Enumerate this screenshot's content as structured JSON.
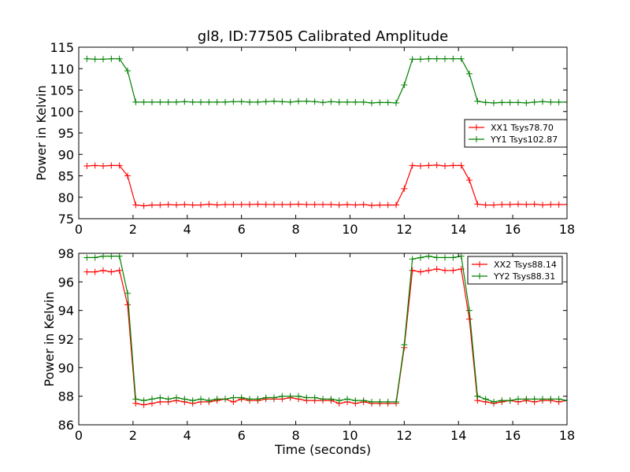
{
  "title": "gl8, ID:77505 Calibrated Amplitude",
  "chart_data": [
    {
      "type": "line",
      "title": "gl8, ID:77505 Calibrated Amplitude",
      "xlabel": "",
      "ylabel": "Power in Kelvin",
      "xlim": [
        0,
        18
      ],
      "ylim": [
        75,
        115
      ],
      "xticks": [
        0,
        2,
        4,
        6,
        8,
        10,
        12,
        14,
        16,
        18
      ],
      "yticks": [
        75,
        80,
        85,
        90,
        95,
        100,
        105,
        110,
        115
      ],
      "grid": false,
      "legend": "center-right",
      "series": [
        {
          "name": "XX1 Tsys78.70",
          "color": "#ff0000",
          "marker": "+",
          "x": [
            0.3,
            0.6,
            0.9,
            1.2,
            1.5,
            1.8,
            2.1,
            2.4,
            2.7,
            3.0,
            3.3,
            3.6,
            3.9,
            4.2,
            4.5,
            4.8,
            5.1,
            5.4,
            5.7,
            6.0,
            6.3,
            6.6,
            6.9,
            7.2,
            7.5,
            7.8,
            8.1,
            8.4,
            8.7,
            9.0,
            9.3,
            9.6,
            9.9,
            10.2,
            10.5,
            10.8,
            11.1,
            11.4,
            11.7,
            12.0,
            12.3,
            12.6,
            12.9,
            13.2,
            13.5,
            13.8,
            14.1,
            14.4,
            14.7,
            15.0,
            15.3,
            15.6,
            15.9,
            16.2,
            16.5,
            16.8,
            17.1,
            17.4,
            17.7,
            18.0
          ],
          "y": [
            87.3,
            87.4,
            87.3,
            87.4,
            87.4,
            85.0,
            78.2,
            78.0,
            78.2,
            78.2,
            78.3,
            78.2,
            78.3,
            78.2,
            78.2,
            78.4,
            78.2,
            78.3,
            78.3,
            78.3,
            78.3,
            78.4,
            78.3,
            78.3,
            78.3,
            78.3,
            78.4,
            78.3,
            78.3,
            78.3,
            78.3,
            78.2,
            78.3,
            78.2,
            78.3,
            78.1,
            78.2,
            78.2,
            78.2,
            82.0,
            87.4,
            87.3,
            87.4,
            87.5,
            87.3,
            87.4,
            87.4,
            84.0,
            78.4,
            78.2,
            78.2,
            78.3,
            78.3,
            78.4,
            78.3,
            78.4,
            78.2,
            78.3,
            78.3,
            78.3
          ]
        },
        {
          "name": "YY1 Tsys102.87",
          "color": "#008000",
          "marker": "+",
          "x": [
            0.3,
            0.6,
            0.9,
            1.2,
            1.5,
            1.8,
            2.1,
            2.4,
            2.7,
            3.0,
            3.3,
            3.6,
            3.9,
            4.2,
            4.5,
            4.8,
            5.1,
            5.4,
            5.7,
            6.0,
            6.3,
            6.6,
            6.9,
            7.2,
            7.5,
            7.8,
            8.1,
            8.4,
            8.7,
            9.0,
            9.3,
            9.6,
            9.9,
            10.2,
            10.5,
            10.8,
            11.1,
            11.4,
            11.7,
            12.0,
            12.3,
            12.6,
            12.9,
            13.2,
            13.5,
            13.8,
            14.1,
            14.4,
            14.7,
            15.0,
            15.3,
            15.6,
            15.9,
            16.2,
            16.5,
            16.8,
            17.1,
            17.4,
            17.7,
            18.0
          ],
          "y": [
            112.3,
            112.2,
            112.2,
            112.3,
            112.3,
            109.5,
            102.2,
            102.2,
            102.2,
            102.2,
            102.2,
            102.2,
            102.3,
            102.2,
            102.2,
            102.2,
            102.2,
            102.2,
            102.3,
            102.3,
            102.2,
            102.2,
            102.3,
            102.4,
            102.3,
            102.2,
            102.4,
            102.4,
            102.3,
            102.1,
            102.3,
            102.2,
            102.2,
            102.2,
            102.2,
            102.0,
            102.1,
            102.1,
            102.0,
            106.2,
            112.2,
            112.2,
            112.3,
            112.3,
            112.3,
            112.3,
            112.3,
            108.8,
            102.4,
            102.1,
            102.0,
            102.1,
            102.1,
            102.1,
            102.0,
            102.2,
            102.3,
            102.2,
            102.2,
            102.2
          ]
        }
      ]
    },
    {
      "type": "line",
      "title": "",
      "xlabel": "Time (seconds)",
      "ylabel": "Power in Kelvin",
      "xlim": [
        0,
        18
      ],
      "ylim": [
        86,
        98
      ],
      "xticks": [
        0,
        2,
        4,
        6,
        8,
        10,
        12,
        14,
        16,
        18
      ],
      "yticks": [
        86,
        88,
        90,
        92,
        94,
        96,
        98
      ],
      "grid": false,
      "legend": "top-right",
      "series": [
        {
          "name": "XX2 Tsys88.14",
          "color": "#ff0000",
          "marker": "+",
          "x": [
            0.3,
            0.6,
            0.9,
            1.2,
            1.5,
            1.8,
            2.1,
            2.4,
            2.7,
            3.0,
            3.3,
            3.6,
            3.9,
            4.2,
            4.5,
            4.8,
            5.1,
            5.4,
            5.7,
            6.0,
            6.3,
            6.6,
            6.9,
            7.2,
            7.5,
            7.8,
            8.1,
            8.4,
            8.7,
            9.0,
            9.3,
            9.6,
            9.9,
            10.2,
            10.5,
            10.8,
            11.1,
            11.4,
            11.7,
            12.0,
            12.3,
            12.6,
            12.9,
            13.2,
            13.5,
            13.8,
            14.1,
            14.4,
            14.7,
            15.0,
            15.3,
            15.6,
            15.9,
            16.2,
            16.5,
            16.8,
            17.1,
            17.4,
            17.7,
            18.0
          ],
          "y": [
            96.7,
            96.7,
            96.8,
            96.7,
            96.8,
            94.4,
            87.5,
            87.4,
            87.5,
            87.6,
            87.6,
            87.7,
            87.6,
            87.5,
            87.6,
            87.6,
            87.7,
            87.8,
            87.6,
            87.8,
            87.7,
            87.7,
            87.8,
            87.8,
            87.8,
            87.9,
            87.8,
            87.7,
            87.7,
            87.7,
            87.7,
            87.5,
            87.6,
            87.5,
            87.6,
            87.5,
            87.5,
            87.5,
            87.5,
            91.4,
            96.8,
            96.7,
            96.8,
            96.9,
            96.8,
            96.8,
            96.9,
            93.4,
            87.7,
            87.6,
            87.5,
            87.6,
            87.7,
            87.6,
            87.7,
            87.6,
            87.7,
            87.7,
            87.6,
            87.7
          ]
        },
        {
          "name": "YY2 Tsys88.31",
          "color": "#008000",
          "marker": "+",
          "x": [
            0.3,
            0.6,
            0.9,
            1.2,
            1.5,
            1.8,
            2.1,
            2.4,
            2.7,
            3.0,
            3.3,
            3.6,
            3.9,
            4.2,
            4.5,
            4.8,
            5.1,
            5.4,
            5.7,
            6.0,
            6.3,
            6.6,
            6.9,
            7.2,
            7.5,
            7.8,
            8.1,
            8.4,
            8.7,
            9.0,
            9.3,
            9.6,
            9.9,
            10.2,
            10.5,
            10.8,
            11.1,
            11.4,
            11.7,
            12.0,
            12.3,
            12.6,
            12.9,
            13.2,
            13.5,
            13.8,
            14.1,
            14.4,
            14.7,
            15.0,
            15.3,
            15.6,
            15.9,
            16.2,
            16.5,
            16.8,
            17.1,
            17.4,
            17.7,
            18.0
          ],
          "y": [
            97.7,
            97.7,
            97.8,
            97.8,
            97.8,
            95.2,
            87.8,
            87.7,
            87.8,
            87.9,
            87.8,
            87.9,
            87.8,
            87.7,
            87.8,
            87.7,
            87.8,
            87.8,
            87.9,
            87.9,
            87.8,
            87.8,
            87.9,
            87.9,
            88.0,
            88.0,
            88.0,
            87.9,
            87.9,
            87.8,
            87.8,
            87.7,
            87.8,
            87.7,
            87.7,
            87.6,
            87.6,
            87.6,
            87.6,
            91.6,
            97.6,
            97.7,
            97.8,
            97.7,
            97.7,
            97.7,
            97.8,
            94.0,
            88.0,
            87.8,
            87.6,
            87.7,
            87.7,
            87.8,
            87.8,
            87.8,
            87.8,
            87.8,
            87.8,
            87.7
          ]
        }
      ]
    }
  ]
}
